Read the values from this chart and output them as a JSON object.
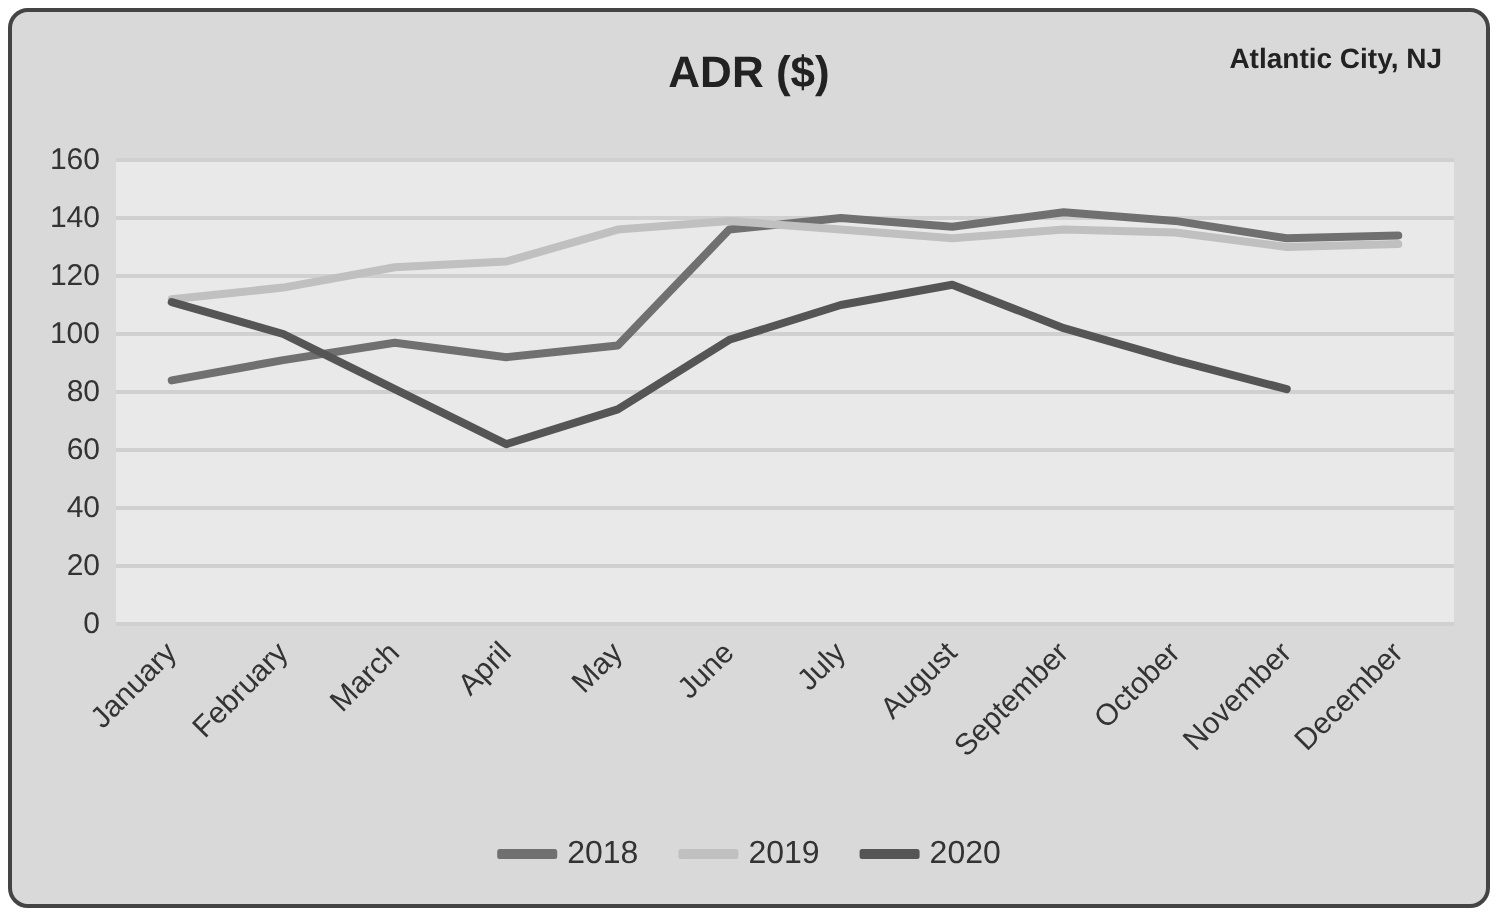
{
  "chart_data": {
    "type": "line",
    "title": "ADR ($)",
    "annotations": [
      "Atlantic City, NJ"
    ],
    "categories": [
      "January",
      "February",
      "March",
      "April",
      "May",
      "June",
      "July",
      "August",
      "September",
      "October",
      "November",
      "December"
    ],
    "series": [
      {
        "name": "2018",
        "color": "#707070",
        "values": [
          84,
          91,
          97,
          92,
          96,
          136,
          140,
          137,
          142,
          139,
          133,
          134
        ]
      },
      {
        "name": "2019",
        "color": "#c0c0c0",
        "values": [
          112,
          116,
          123,
          125,
          136,
          139,
          136,
          133,
          136,
          135,
          130,
          131
        ]
      },
      {
        "name": "2020",
        "color": "#555555",
        "values": [
          111,
          100,
          81,
          62,
          74,
          98,
          110,
          117,
          102,
          91,
          81,
          null
        ]
      }
    ],
    "ylim": [
      0,
      160
    ],
    "yticks": [
      0,
      20,
      40,
      60,
      80,
      100,
      120,
      140,
      160
    ],
    "grid": "y",
    "legend": "bottom",
    "marker": "none",
    "line_style": "solid"
  }
}
